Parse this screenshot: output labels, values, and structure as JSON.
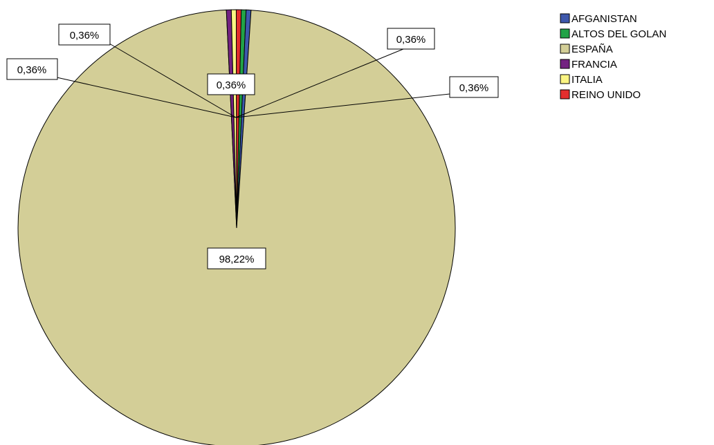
{
  "chart_data": {
    "type": "pie",
    "title": "",
    "categories": [
      "AFGANISTAN",
      "ALTOS DEL GOLAN",
      "ESPAÑA",
      "FRANCIA",
      "ITALIA",
      "REINO UNIDO"
    ],
    "values": [
      0.36,
      0.36,
      98.22,
      0.36,
      0.36,
      0.36
    ],
    "data_labels": [
      "0,36%",
      "0,36%",
      "98,22%",
      "0,36%",
      "0,36%",
      "0,36%"
    ],
    "colors": [
      "#3e58ac",
      "#22a347",
      "#d3ce97",
      "#732281",
      "#fbf583",
      "#e32d2d"
    ],
    "legend_placement": "top-right",
    "legend": [
      {
        "label": "AFGANISTAN",
        "color": "#3e58ac"
      },
      {
        "label": "ALTOS DEL GOLAN",
        "color": "#22a347"
      },
      {
        "label": "ESPAÑA",
        "color": "#d3ce97"
      },
      {
        "label": "FRANCIA",
        "color": "#732281"
      },
      {
        "label": "ITALIA",
        "color": "#fbf583"
      },
      {
        "label": "REINO UNIDO",
        "color": "#e32d2d"
      }
    ]
  }
}
